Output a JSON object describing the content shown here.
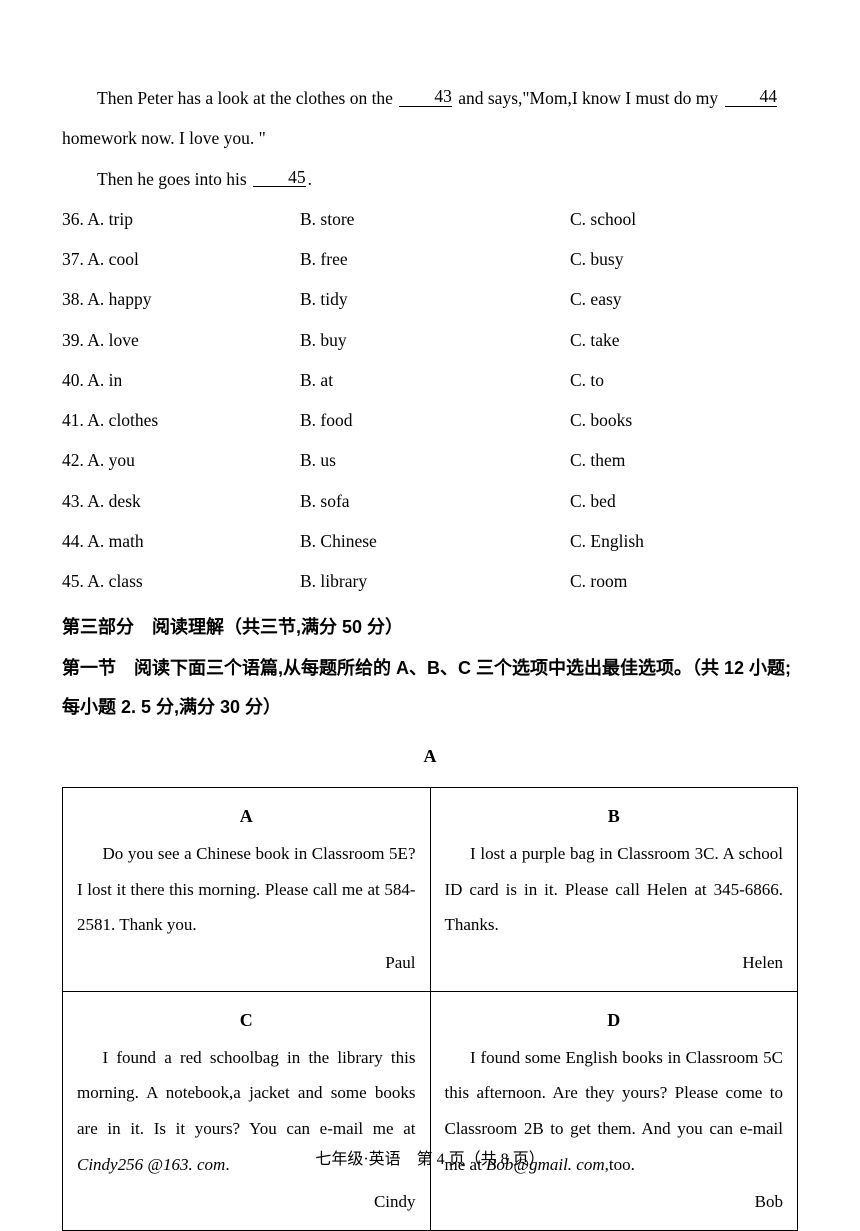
{
  "passage": {
    "p1_pre": "Then Peter has a look at the clothes on the ",
    "b43": "43",
    "p1_mid": " and says,\"Mom,I know I must do my ",
    "b44": "44",
    "p2": "homework now. I love you. \"",
    "p3_pre": "Then he goes into his ",
    "b45": "45",
    "p3_post": "."
  },
  "options": [
    {
      "n": "36",
      "a": "A. trip",
      "b": "B. store",
      "c": "C. school"
    },
    {
      "n": "37",
      "a": "A. cool",
      "b": "B. free",
      "c": "C. busy"
    },
    {
      "n": "38",
      "a": "A. happy",
      "b": "B. tidy",
      "c": "C. easy"
    },
    {
      "n": "39",
      "a": "A. love",
      "b": "B. buy",
      "c": "C. take"
    },
    {
      "n": "40",
      "a": "A. in",
      "b": "B. at",
      "c": "C. to"
    },
    {
      "n": "41",
      "a": "A. clothes",
      "b": "B. food",
      "c": "C. books"
    },
    {
      "n": "42",
      "a": "A. you",
      "b": "B. us",
      "c": "C. them"
    },
    {
      "n": "43",
      "a": "A. desk",
      "b": "B. sofa",
      "c": "C. bed"
    },
    {
      "n": "44",
      "a": "A. math",
      "b": "B. Chinese",
      "c": "C. English"
    },
    {
      "n": "45",
      "a": "A. class",
      "b": "B. library",
      "c": "C. room"
    }
  ],
  "section3": "第三部分　阅读理解（共三节,满分 50 分）",
  "section3sub": "第一节　阅读下面三个语篇,从每题所给的 A、B、C 三个选项中选出最佳选项。（共 12 小题;每小题 2. 5 分,满分 30 分）",
  "centerA": "A",
  "cells": {
    "A": {
      "label": "A",
      "body": "Do you see a Chinese book in Classroom 5E? I lost it there this morning. Please call me at 584-2581. Thank you.",
      "sig": "Paul"
    },
    "B": {
      "label": "B",
      "body": "I lost a purple bag in Classroom 3C. A school ID card is in it. Please call Helen at 345-6866. Thanks.",
      "sig": "Helen"
    },
    "C": {
      "label": "C",
      "body_pre": "I found a red schoolbag in the library this morning. A notebook,a jacket and some books are in it. Is it yours? You can e-mail me at ",
      "email": "Cindy256 @163. com",
      "body_post": ".",
      "sig": "Cindy"
    },
    "D": {
      "label": "D",
      "body_pre": "I found some English books in Classroom 5C this afternoon. Are they yours? Please come to Classroom 2B to get them. And you can e-mail me at ",
      "email": "Bob@gmail. com",
      "body_post": ",too.",
      "sig": "Bob"
    }
  },
  "footer": "七年级·英语　第 4 页（共 8 页）"
}
